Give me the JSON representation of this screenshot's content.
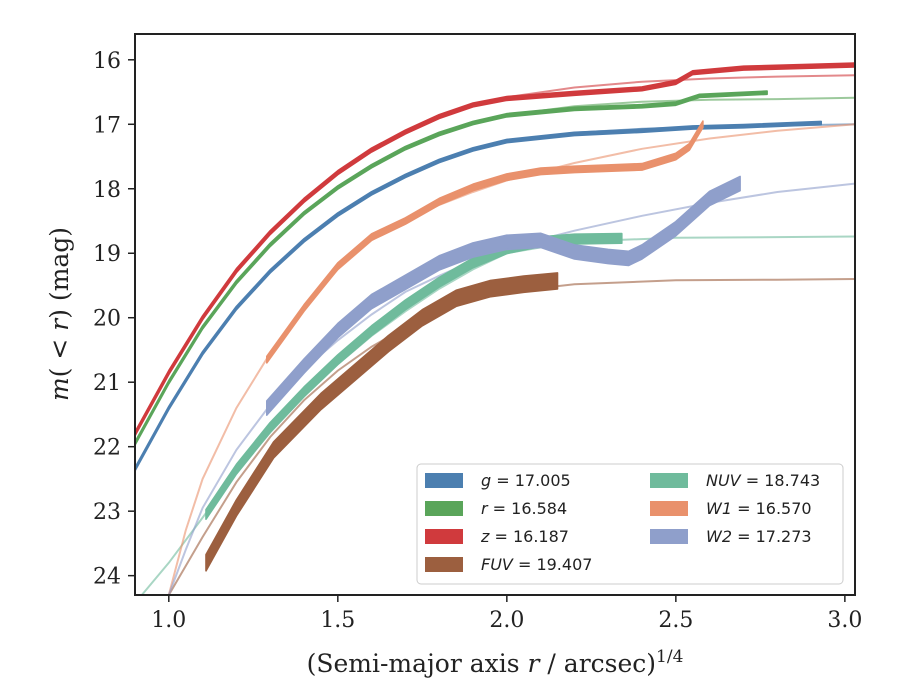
{
  "chart_data": {
    "type": "line",
    "xlabel": "(Semi-major axis r / arcsec)^1/4",
    "ylabel": "m(< r) (mag)",
    "xlim": [
      0.9,
      3.03
    ],
    "ylim": [
      24.3,
      15.6
    ],
    "y_inverted": true,
    "x_ticks": [
      "1.0",
      "1.5",
      "2.0",
      "2.5",
      "3.0"
    ],
    "y_ticks": [
      "16",
      "17",
      "18",
      "19",
      "20",
      "21",
      "22",
      "23",
      "24"
    ],
    "grid": false,
    "legend_position": "lower-right",
    "series": [
      {
        "name": "g = 17.005",
        "band": "g",
        "total_mag": "17.005",
        "color": "#4c7fb0",
        "model": [
          [
            0.9,
            22.35
          ],
          [
            1.0,
            21.4
          ],
          [
            1.1,
            20.55
          ],
          [
            1.2,
            19.85
          ],
          [
            1.3,
            19.28
          ],
          [
            1.4,
            18.8
          ],
          [
            1.5,
            18.4
          ],
          [
            1.6,
            18.07
          ],
          [
            1.7,
            17.8
          ],
          [
            1.8,
            17.57
          ],
          [
            1.9,
            17.39
          ],
          [
            2.0,
            17.26
          ],
          [
            2.2,
            17.13
          ],
          [
            2.4,
            17.07
          ],
          [
            2.6,
            17.04
          ],
          [
            2.8,
            17.02
          ],
          [
            3.03,
            17.0
          ]
        ],
        "data": [
          [
            0.9,
            22.35
          ],
          [
            1.0,
            21.4
          ],
          [
            1.1,
            20.55
          ],
          [
            1.2,
            19.85
          ],
          [
            1.3,
            19.28
          ],
          [
            1.4,
            18.8
          ],
          [
            1.5,
            18.4
          ],
          [
            1.6,
            18.07
          ],
          [
            1.7,
            17.8
          ],
          [
            1.8,
            17.57
          ],
          [
            1.9,
            17.39
          ],
          [
            2.0,
            17.26
          ],
          [
            2.2,
            17.15
          ],
          [
            2.4,
            17.1
          ],
          [
            2.55,
            17.05
          ],
          [
            2.7,
            17.03
          ],
          [
            2.93,
            16.98
          ]
        ],
        "band_width": 0.05
      },
      {
        "name": "r = 16.584",
        "band": "r",
        "total_mag": "16.584",
        "color": "#5aa55a",
        "model": [
          [
            0.9,
            21.95
          ],
          [
            1.0,
            21.0
          ],
          [
            1.1,
            20.15
          ],
          [
            1.2,
            19.45
          ],
          [
            1.3,
            18.87
          ],
          [
            1.4,
            18.38
          ],
          [
            1.5,
            17.98
          ],
          [
            1.6,
            17.65
          ],
          [
            1.7,
            17.37
          ],
          [
            1.8,
            17.15
          ],
          [
            1.9,
            16.98
          ],
          [
            2.0,
            16.86
          ],
          [
            2.2,
            16.72
          ],
          [
            2.4,
            16.65
          ],
          [
            2.6,
            16.62
          ],
          [
            2.8,
            16.61
          ],
          [
            3.03,
            16.59
          ]
        ],
        "data": [
          [
            0.9,
            21.95
          ],
          [
            1.0,
            21.0
          ],
          [
            1.1,
            20.15
          ],
          [
            1.2,
            19.45
          ],
          [
            1.3,
            18.87
          ],
          [
            1.4,
            18.38
          ],
          [
            1.5,
            17.98
          ],
          [
            1.6,
            17.65
          ],
          [
            1.7,
            17.37
          ],
          [
            1.8,
            17.15
          ],
          [
            1.9,
            16.98
          ],
          [
            2.0,
            16.86
          ],
          [
            2.2,
            16.76
          ],
          [
            2.4,
            16.72
          ],
          [
            2.5,
            16.68
          ],
          [
            2.57,
            16.56
          ],
          [
            2.77,
            16.51
          ]
        ],
        "band_width": 0.05
      },
      {
        "name": "z = 16.187",
        "band": "z",
        "total_mag": "16.187",
        "color": "#d03a3d",
        "model": [
          [
            0.9,
            21.8
          ],
          [
            1.0,
            20.85
          ],
          [
            1.1,
            20.0
          ],
          [
            1.2,
            19.27
          ],
          [
            1.3,
            18.68
          ],
          [
            1.4,
            18.18
          ],
          [
            1.5,
            17.75
          ],
          [
            1.6,
            17.4
          ],
          [
            1.7,
            17.12
          ],
          [
            1.8,
            16.88
          ],
          [
            1.9,
            16.7
          ],
          [
            2.0,
            16.58
          ],
          [
            2.2,
            16.43
          ],
          [
            2.4,
            16.34
          ],
          [
            2.6,
            16.29
          ],
          [
            2.8,
            16.26
          ],
          [
            3.03,
            16.24
          ]
        ],
        "data": [
          [
            0.9,
            21.8
          ],
          [
            1.0,
            20.85
          ],
          [
            1.1,
            20.0
          ],
          [
            1.2,
            19.27
          ],
          [
            1.3,
            18.68
          ],
          [
            1.4,
            18.18
          ],
          [
            1.5,
            17.75
          ],
          [
            1.6,
            17.4
          ],
          [
            1.7,
            17.12
          ],
          [
            1.8,
            16.88
          ],
          [
            1.9,
            16.7
          ],
          [
            2.0,
            16.6
          ],
          [
            2.2,
            16.52
          ],
          [
            2.4,
            16.45
          ],
          [
            2.5,
            16.35
          ],
          [
            2.55,
            16.2
          ],
          [
            2.7,
            16.13
          ],
          [
            2.9,
            16.1
          ],
          [
            3.03,
            16.08
          ]
        ],
        "band_width": 0.06
      },
      {
        "name": "FUV = 19.407",
        "band": "FUV",
        "total_mag": "19.407",
        "color": "#9c5f3f",
        "model": [
          [
            1.0,
            24.3
          ],
          [
            1.1,
            23.4
          ],
          [
            1.2,
            22.55
          ],
          [
            1.3,
            21.85
          ],
          [
            1.4,
            21.28
          ],
          [
            1.5,
            20.82
          ],
          [
            1.6,
            20.45
          ],
          [
            1.7,
            20.15
          ],
          [
            1.8,
            19.9
          ],
          [
            1.9,
            19.72
          ],
          [
            2.0,
            19.6
          ],
          [
            2.2,
            19.48
          ],
          [
            2.5,
            19.42
          ],
          [
            2.8,
            19.41
          ],
          [
            3.03,
            19.4
          ]
        ],
        "data": [
          [
            1.11,
            23.8
          ],
          [
            1.2,
            22.95
          ],
          [
            1.31,
            22.05
          ],
          [
            1.45,
            21.3
          ],
          [
            1.55,
            20.85
          ],
          [
            1.65,
            20.4
          ],
          [
            1.75,
            20.0
          ],
          [
            1.85,
            19.7
          ],
          [
            1.95,
            19.55
          ],
          [
            2.05,
            19.48
          ],
          [
            2.15,
            19.43
          ]
        ],
        "band_width": 0.25
      },
      {
        "name": "NUV = 18.743",
        "band": "NUV",
        "total_mag": "18.743",
        "color": "#6fbb9c",
        "model": [
          [
            0.92,
            24.3
          ],
          [
            1.0,
            23.8
          ],
          [
            1.1,
            23.1
          ],
          [
            1.2,
            22.4
          ],
          [
            1.3,
            21.78
          ],
          [
            1.4,
            21.22
          ],
          [
            1.5,
            20.72
          ],
          [
            1.6,
            20.28
          ],
          [
            1.7,
            19.9
          ],
          [
            1.8,
            19.55
          ],
          [
            1.9,
            19.25
          ],
          [
            2.0,
            19.0
          ],
          [
            2.2,
            18.82
          ],
          [
            2.5,
            18.76
          ],
          [
            2.8,
            18.75
          ],
          [
            3.03,
            18.74
          ]
        ],
        "data": [
          [
            1.11,
            23.05
          ],
          [
            1.2,
            22.35
          ],
          [
            1.3,
            21.7
          ],
          [
            1.4,
            21.15
          ],
          [
            1.5,
            20.65
          ],
          [
            1.6,
            20.2
          ],
          [
            1.7,
            19.8
          ],
          [
            1.8,
            19.45
          ],
          [
            1.9,
            19.15
          ],
          [
            2.0,
            18.93
          ],
          [
            2.1,
            18.82
          ],
          [
            2.2,
            18.78
          ],
          [
            2.34,
            18.77
          ]
        ],
        "band_width": 0.15
      },
      {
        "name": "W1 = 16.570",
        "band": "W1",
        "total_mag": "16.570",
        "color": "#e9916c",
        "model": [
          [
            1.0,
            24.3
          ],
          [
            1.05,
            23.3
          ],
          [
            1.1,
            22.5
          ],
          [
            1.2,
            21.4
          ],
          [
            1.3,
            20.55
          ],
          [
            1.4,
            19.85
          ],
          [
            1.5,
            19.25
          ],
          [
            1.6,
            18.8
          ],
          [
            1.7,
            18.5
          ],
          [
            1.8,
            18.25
          ],
          [
            1.9,
            18.05
          ],
          [
            2.0,
            17.87
          ],
          [
            2.2,
            17.6
          ],
          [
            2.4,
            17.38
          ],
          [
            2.6,
            17.22
          ],
          [
            2.8,
            17.1
          ],
          [
            3.03,
            17.0
          ]
        ],
        "data": [
          [
            1.29,
            20.65
          ],
          [
            1.4,
            19.85
          ],
          [
            1.5,
            19.2
          ],
          [
            1.6,
            18.75
          ],
          [
            1.7,
            18.5
          ],
          [
            1.8,
            18.2
          ],
          [
            1.9,
            17.98
          ],
          [
            2.0,
            17.82
          ],
          [
            2.1,
            17.73
          ],
          [
            2.2,
            17.7
          ],
          [
            2.3,
            17.68
          ],
          [
            2.4,
            17.66
          ],
          [
            2.5,
            17.5
          ],
          [
            2.54,
            17.35
          ],
          [
            2.58,
            17.0
          ]
        ],
        "band_width": 0.1
      },
      {
        "name": "W2 = 17.273",
        "band": "W2",
        "total_mag": "17.273",
        "color": "#8f9fcb",
        "model": [
          [
            1.0,
            24.3
          ],
          [
            1.05,
            23.6
          ],
          [
            1.1,
            22.95
          ],
          [
            1.2,
            22.05
          ],
          [
            1.3,
            21.35
          ],
          [
            1.4,
            20.8
          ],
          [
            1.5,
            20.35
          ],
          [
            1.6,
            19.95
          ],
          [
            1.7,
            19.6
          ],
          [
            1.8,
            19.35
          ],
          [
            1.9,
            19.12
          ],
          [
            2.0,
            18.92
          ],
          [
            2.2,
            18.65
          ],
          [
            2.4,
            18.42
          ],
          [
            2.6,
            18.22
          ],
          [
            2.8,
            18.05
          ],
          [
            3.03,
            17.92
          ]
        ],
        "data": [
          [
            1.29,
            21.4
          ],
          [
            1.4,
            20.75
          ],
          [
            1.5,
            20.2
          ],
          [
            1.6,
            19.75
          ],
          [
            1.7,
            19.45
          ],
          [
            1.8,
            19.15
          ],
          [
            1.9,
            18.95
          ],
          [
            2.0,
            18.83
          ],
          [
            2.1,
            18.8
          ],
          [
            2.2,
            18.98
          ],
          [
            2.3,
            19.05
          ],
          [
            2.36,
            19.08
          ],
          [
            2.4,
            18.98
          ],
          [
            2.5,
            18.62
          ],
          [
            2.6,
            18.15
          ],
          [
            2.69,
            17.92
          ]
        ],
        "band_width": 0.22
      }
    ]
  }
}
